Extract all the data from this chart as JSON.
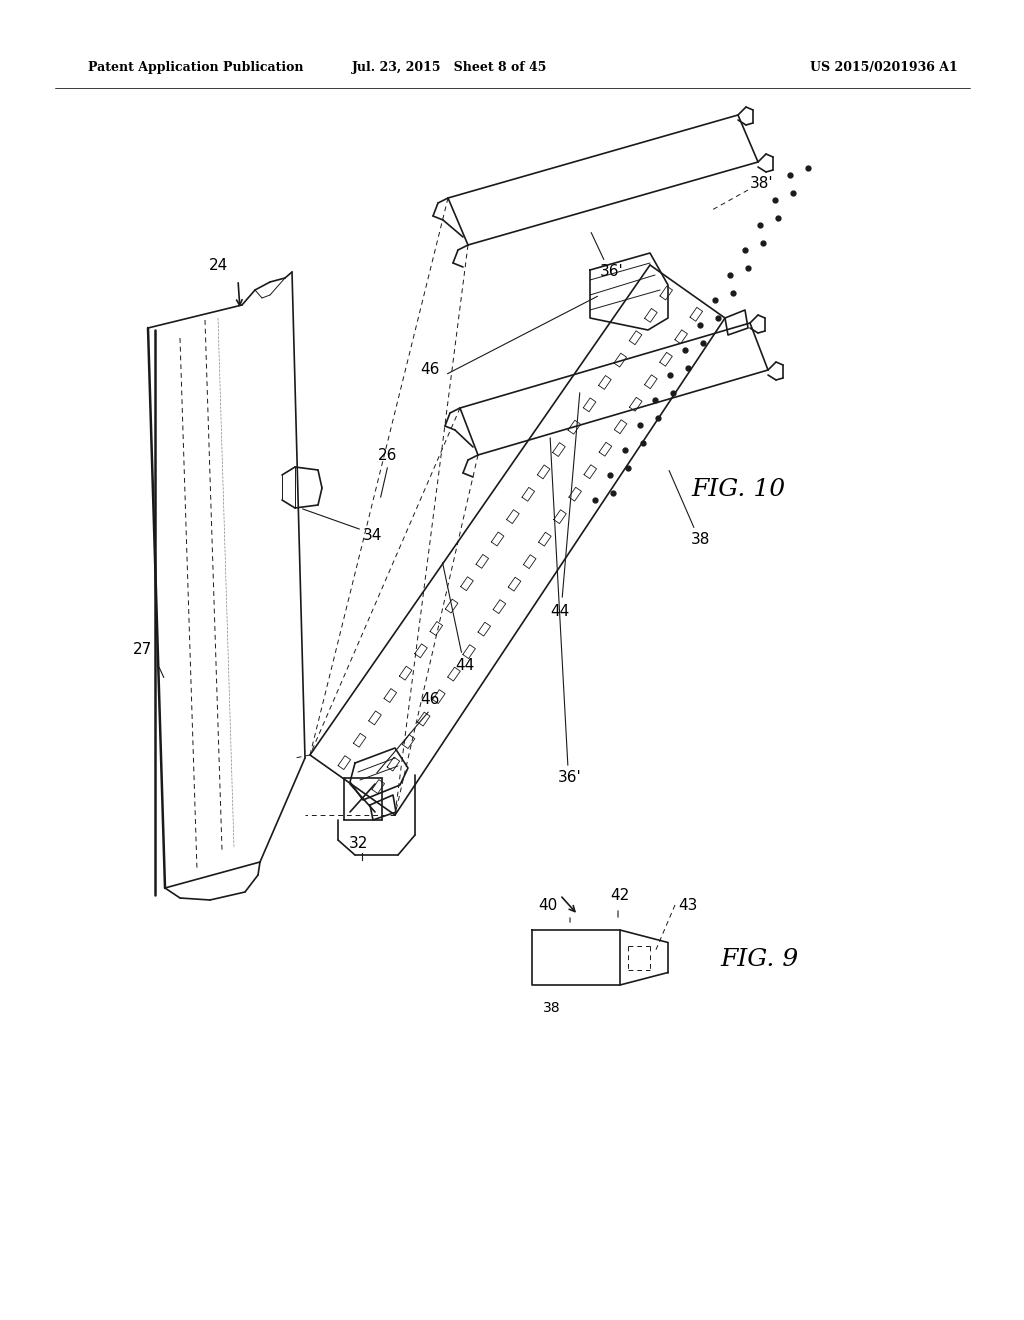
{
  "bg_color": "#ffffff",
  "header_left": "Patent Application Publication",
  "header_mid": "Jul. 23, 2015   Sheet 8 of 45",
  "header_right": "US 2015/0201936 A1",
  "fig9_label": "FIG. 9",
  "fig10_label": "FIG. 10",
  "lc": "#1a1a1a",
  "lw": 1.2,
  "lwt": 0.7,
  "lwk": 1.8
}
